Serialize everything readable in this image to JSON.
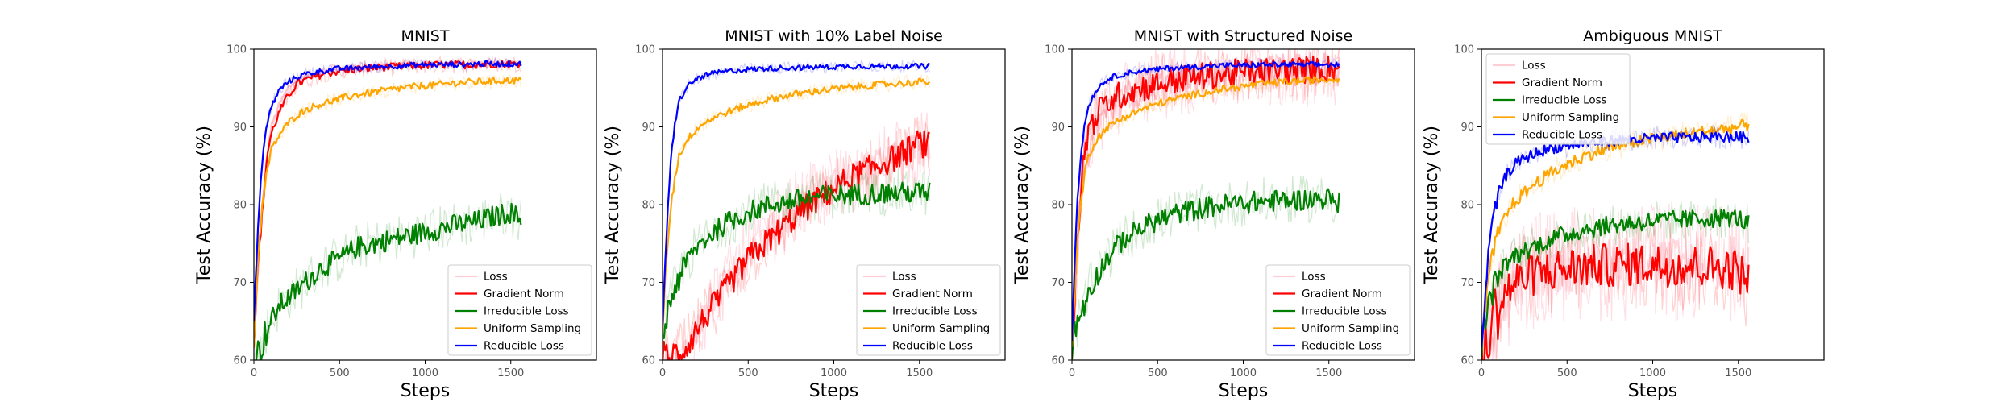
{
  "figure": {
    "panel_count": 4
  },
  "chart_data": [
    {
      "type": "line",
      "title": "MNIST",
      "xlabel": "Steps",
      "ylabel": "Test Accuracy (%)",
      "xlim": [
        0,
        2000
      ],
      "ylim": [
        60,
        100
      ],
      "x_ticks": [
        0,
        500,
        1000,
        1500
      ],
      "y_ticks": [
        60,
        70,
        80,
        90,
        100
      ],
      "grid": false,
      "legend_position": "lower-right",
      "series": [
        {
          "name": "Loss",
          "color": "#ffc0cb",
          "x": [
            0,
            25,
            50,
            75,
            100,
            150,
            200,
            250,
            300,
            400,
            500,
            600,
            700,
            800,
            900,
            1000,
            1100,
            1200,
            1300,
            1400,
            1500,
            1560
          ],
          "y": [
            62,
            72,
            80,
            86,
            90,
            93,
            95,
            96,
            96.5,
            97,
            97.4,
            97.6,
            97.8,
            97.9,
            98,
            98,
            98.1,
            98.1,
            98.1,
            98.2,
            98.2,
            98.2
          ]
        },
        {
          "name": "Gradient Norm",
          "color": "#ff0000",
          "x": [
            0,
            25,
            50,
            75,
            100,
            150,
            200,
            250,
            300,
            400,
            500,
            600,
            700,
            800,
            900,
            1000,
            1100,
            1200,
            1300,
            1400,
            1500,
            1560
          ],
          "y": [
            62,
            73,
            79,
            86,
            89,
            92,
            94,
            95.5,
            96,
            96.8,
            97.2,
            97.4,
            97.6,
            97.7,
            97.8,
            97.9,
            98,
            98,
            98,
            98.1,
            98.1,
            98.1
          ]
        },
        {
          "name": "Irreducible Loss",
          "color": "#008000",
          "x": [
            0,
            25,
            50,
            75,
            100,
            150,
            200,
            250,
            300,
            400,
            500,
            600,
            700,
            800,
            900,
            1000,
            1100,
            1200,
            1300,
            1400,
            1500,
            1560
          ],
          "y": [
            60,
            61,
            62,
            64,
            65,
            67,
            68,
            69,
            70,
            72,
            73,
            74.5,
            75,
            75.5,
            76,
            76.5,
            77,
            77.5,
            77.8,
            78.5,
            79,
            78
          ]
        },
        {
          "name": "Uniform Sampling",
          "color": "#ffa500",
          "x": [
            0,
            25,
            50,
            75,
            100,
            150,
            200,
            250,
            300,
            400,
            500,
            600,
            700,
            800,
            900,
            1000,
            1100,
            1200,
            1300,
            1400,
            1500,
            1560
          ],
          "y": [
            62,
            74,
            80,
            84,
            87,
            89,
            90.5,
            91.5,
            92.2,
            93,
            93.6,
            94.1,
            94.5,
            94.8,
            95.1,
            95.3,
            95.5,
            95.7,
            95.8,
            95.9,
            96,
            96
          ]
        },
        {
          "name": "Reducible Loss",
          "color": "#0000ff",
          "x": [
            0,
            25,
            50,
            75,
            100,
            150,
            200,
            250,
            300,
            400,
            500,
            600,
            700,
            800,
            900,
            1000,
            1100,
            1200,
            1300,
            1400,
            1500,
            1560
          ],
          "y": [
            65,
            78,
            86,
            90,
            92.5,
            94.8,
            95.8,
            96.4,
            96.8,
            97.2,
            97.5,
            97.6,
            97.7,
            97.8,
            97.9,
            98,
            98,
            98,
            98.1,
            98.1,
            98.1,
            98.1
          ]
        }
      ]
    },
    {
      "type": "line",
      "title": "MNIST with 10% Label Noise",
      "xlabel": "Steps",
      "ylabel": "Test Accuracy (%)",
      "xlim": [
        0,
        2000
      ],
      "ylim": [
        60,
        100
      ],
      "x_ticks": [
        0,
        500,
        1000,
        1500
      ],
      "y_ticks": [
        60,
        70,
        80,
        90,
        100
      ],
      "grid": false,
      "legend_position": "lower-right",
      "series": [
        {
          "name": "Loss",
          "color": "#ffc0cb",
          "x": [
            0,
            50,
            100,
            150,
            200,
            300,
            400,
            500,
            600,
            700,
            800,
            900,
            1000,
            1100,
            1200,
            1300,
            1400,
            1500,
            1560
          ],
          "y": [
            58,
            59,
            60,
            62,
            64,
            68,
            71,
            74,
            76,
            78,
            80,
            81,
            82.5,
            83.5,
            84.5,
            85.5,
            86.5,
            87,
            87.5
          ]
        },
        {
          "name": "Gradient Norm",
          "color": "#ff0000",
          "x": [
            0,
            50,
            100,
            150,
            200,
            300,
            400,
            500,
            600,
            700,
            800,
            900,
            1000,
            1100,
            1200,
            1300,
            1400,
            1500,
            1560
          ],
          "y": [
            60,
            60,
            61,
            62,
            64,
            67,
            70,
            73,
            75,
            77,
            79,
            80.5,
            82,
            83.5,
            84.5,
            85.5,
            86.5,
            88,
            87.5
          ]
        },
        {
          "name": "Irreducible Loss",
          "color": "#008000",
          "x": [
            0,
            50,
            100,
            150,
            200,
            300,
            400,
            500,
            600,
            700,
            800,
            900,
            1000,
            1100,
            1200,
            1300,
            1400,
            1500,
            1560
          ],
          "y": [
            63,
            68,
            71,
            73,
            74.5,
            76.5,
            78,
            79,
            79.8,
            80.3,
            80.7,
            81,
            81.2,
            81.3,
            81.4,
            81.5,
            81.5,
            81.6,
            81.5
          ]
        },
        {
          "name": "Uniform Sampling",
          "color": "#ffa500",
          "x": [
            0,
            25,
            50,
            75,
            100,
            150,
            200,
            250,
            300,
            400,
            500,
            600,
            700,
            800,
            900,
            1000,
            1100,
            1200,
            1300,
            1400,
            1500,
            1560
          ],
          "y": [
            64,
            74,
            80,
            84,
            86.5,
            88.5,
            89.8,
            90.6,
            91.2,
            92.1,
            92.8,
            93.4,
            93.9,
            94.3,
            94.6,
            94.9,
            95.1,
            95.3,
            95.5,
            95.6,
            95.8,
            95.8
          ]
        },
        {
          "name": "Reducible Loss",
          "color": "#0000ff",
          "x": [
            0,
            25,
            50,
            75,
            100,
            150,
            200,
            250,
            300,
            400,
            500,
            600,
            700,
            800,
            900,
            1000,
            1100,
            1200,
            1300,
            1400,
            1500,
            1560
          ],
          "y": [
            64,
            77,
            86,
            91,
            93.5,
            95.3,
            96.2,
            96.6,
            96.9,
            97.2,
            97.4,
            97.5,
            97.6,
            97.6,
            97.7,
            97.7,
            97.8,
            97.8,
            97.8,
            97.8,
            97.8,
            97.8
          ]
        }
      ]
    },
    {
      "type": "line",
      "title": "MNIST with Structured Noise",
      "xlabel": "Steps",
      "ylabel": "Test Accuracy (%)",
      "xlim": [
        0,
        2000
      ],
      "ylim": [
        60,
        100
      ],
      "x_ticks": [
        0,
        500,
        1000,
        1500
      ],
      "y_ticks": [
        60,
        70,
        80,
        90,
        100
      ],
      "grid": false,
      "legend_position": "lower-right",
      "series": [
        {
          "name": "Loss",
          "color": "#ffc0cb",
          "x": [
            0,
            25,
            50,
            75,
            100,
            150,
            200,
            250,
            300,
            400,
            500,
            600,
            700,
            800,
            900,
            1000,
            1100,
            1200,
            1300,
            1400,
            1500,
            1560
          ],
          "y": [
            60,
            72,
            80,
            85,
            88,
            90.5,
            92,
            93,
            93.8,
            94.8,
            95.5,
            96,
            96.3,
            96.6,
            96.8,
            97,
            97.1,
            97.2,
            97.3,
            97.4,
            97.5,
            97.5
          ]
        },
        {
          "name": "Gradient Norm",
          "color": "#ff0000",
          "x": [
            0,
            25,
            50,
            75,
            100,
            150,
            200,
            250,
            300,
            400,
            500,
            600,
            700,
            800,
            900,
            1000,
            1100,
            1200,
            1300,
            1400,
            1500,
            1560
          ],
          "y": [
            60,
            74,
            82,
            87,
            89.5,
            91.8,
            93,
            93.8,
            94.3,
            95,
            95.5,
            96,
            96.3,
            96.6,
            96.8,
            97,
            97.1,
            97.2,
            97.3,
            97.4,
            97.5,
            97.5
          ]
        },
        {
          "name": "Irreducible Loss",
          "color": "#008000",
          "x": [
            0,
            50,
            100,
            150,
            200,
            300,
            400,
            500,
            600,
            700,
            800,
            900,
            1000,
            1100,
            1200,
            1300,
            1400,
            1500,
            1560
          ],
          "y": [
            62,
            66,
            69,
            71,
            73,
            75.5,
            77,
            78,
            78.8,
            79.3,
            79.7,
            80,
            80.2,
            80.4,
            80.5,
            80.6,
            80.7,
            80.8,
            80.2
          ]
        },
        {
          "name": "Uniform Sampling",
          "color": "#ffa500",
          "x": [
            0,
            25,
            50,
            75,
            100,
            150,
            200,
            250,
            300,
            400,
            500,
            600,
            700,
            800,
            900,
            1000,
            1100,
            1200,
            1300,
            1400,
            1500,
            1560
          ],
          "y": [
            62,
            73,
            80,
            84,
            86.5,
            88.6,
            89.8,
            90.6,
            91.2,
            92.2,
            93,
            93.6,
            94.1,
            94.5,
            94.9,
            95.2,
            95.5,
            95.7,
            95.9,
            96,
            96.1,
            96.2
          ]
        },
        {
          "name": "Reducible Loss",
          "color": "#0000ff",
          "x": [
            0,
            25,
            50,
            75,
            100,
            150,
            200,
            250,
            300,
            400,
            500,
            600,
            700,
            800,
            900,
            1000,
            1100,
            1200,
            1300,
            1400,
            1500,
            1560
          ],
          "y": [
            63,
            78,
            86,
            90.5,
            93,
            95,
            96,
            96.5,
            96.8,
            97.2,
            97.4,
            97.6,
            97.7,
            97.8,
            97.9,
            97.9,
            98,
            98,
            98,
            98,
            98,
            98
          ]
        }
      ]
    },
    {
      "type": "line",
      "title": "Ambiguous MNIST",
      "xlabel": "Steps",
      "ylabel": "Test Accuracy (%)",
      "xlim": [
        0,
        2000
      ],
      "ylim": [
        60,
        100
      ],
      "x_ticks": [
        0,
        500,
        1000,
        1500
      ],
      "y_ticks": [
        60,
        70,
        80,
        90,
        100
      ],
      "grid": false,
      "legend_position": "upper-left",
      "series": [
        {
          "name": "Loss",
          "color": "#ffc0cb",
          "x": [
            0,
            50,
            100,
            150,
            200,
            300,
            400,
            500,
            600,
            700,
            800,
            900,
            1000,
            1100,
            1200,
            1300,
            1400,
            1500,
            1560
          ],
          "y": [
            60,
            64,
            67,
            69,
            70.5,
            71.5,
            72,
            72.3,
            72.5,
            72.5,
            72.6,
            72.5,
            72.6,
            72.5,
            72.4,
            72.5,
            72.3,
            72.4,
            72.2
          ]
        },
        {
          "name": "Gradient Norm",
          "color": "#ff0000",
          "x": [
            0,
            50,
            100,
            150,
            200,
            300,
            400,
            500,
            600,
            700,
            800,
            900,
            1000,
            1100,
            1200,
            1300,
            1400,
            1500,
            1560
          ],
          "y": [
            60,
            64,
            67,
            69,
            70,
            71,
            71.5,
            71.8,
            72,
            72.2,
            72.2,
            72.3,
            72.3,
            72.2,
            72.2,
            72.1,
            72,
            71.5,
            70
          ]
        },
        {
          "name": "Irreducible Loss",
          "color": "#008000",
          "x": [
            0,
            50,
            100,
            150,
            200,
            300,
            400,
            500,
            600,
            700,
            800,
            900,
            1000,
            1100,
            1200,
            1300,
            1400,
            1500,
            1560
          ],
          "y": [
            62,
            68,
            71,
            72.5,
            73.5,
            74.5,
            75.5,
            76.2,
            76.8,
            77.2,
            77.5,
            77.7,
            77.9,
            78,
            78.1,
            78.2,
            78.3,
            78.3,
            77.5
          ]
        },
        {
          "name": "Uniform Sampling",
          "color": "#ffa500",
          "x": [
            0,
            50,
            100,
            150,
            200,
            300,
            400,
            500,
            600,
            700,
            800,
            900,
            1000,
            1100,
            1200,
            1300,
            1400,
            1500,
            1560
          ],
          "y": [
            62,
            72,
            76.5,
            79,
            80.5,
            82.5,
            84,
            85.2,
            86.2,
            87,
            87.6,
            88.1,
            88.5,
            88.8,
            89.1,
            89.4,
            89.7,
            90,
            90.3
          ]
        },
        {
          "name": "Reducible Loss",
          "color": "#0000ff",
          "x": [
            0,
            50,
            100,
            150,
            200,
            300,
            400,
            500,
            600,
            700,
            800,
            900,
            1000,
            1100,
            1200,
            1300,
            1400,
            1500,
            1560
          ],
          "y": [
            62,
            76,
            81.5,
            84,
            85.3,
            86.5,
            87.2,
            87.6,
            87.9,
            88.1,
            88.3,
            88.4,
            88.5,
            88.6,
            88.6,
            88.7,
            88.7,
            88.7,
            88.6
          ]
        }
      ]
    }
  ]
}
